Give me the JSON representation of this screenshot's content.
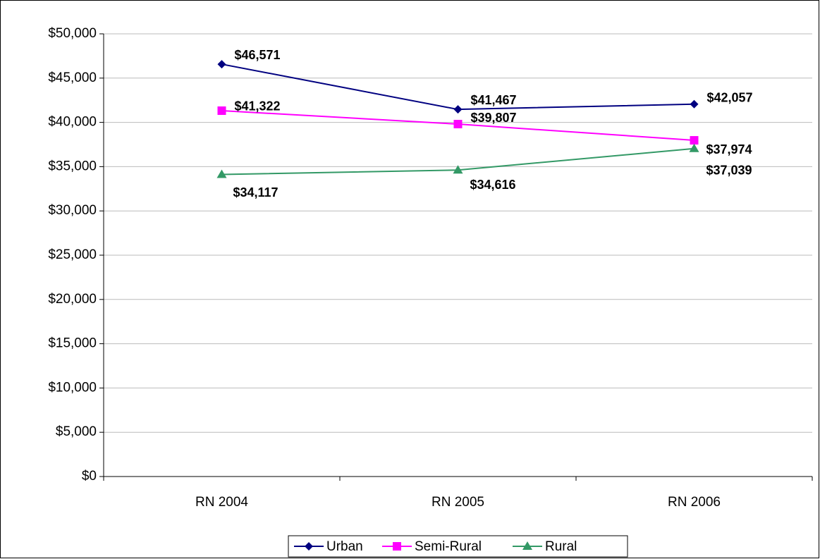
{
  "chart_data": {
    "type": "line",
    "categories": [
      "RN 2004",
      "RN 2005",
      "RN 2006"
    ],
    "series": [
      {
        "name": "Urban",
        "color": "#000080",
        "marker": "diamond",
        "values": [
          46571,
          41467,
          42057
        ],
        "value_labels": [
          "$46,571",
          "$41,467",
          "$42,057"
        ]
      },
      {
        "name": "Semi-Rural",
        "color": "#ff00ff",
        "marker": "square",
        "values": [
          41322,
          39807,
          37974
        ],
        "value_labels": [
          "$41,322",
          "$39,807",
          "$37,974"
        ]
      },
      {
        "name": "Rural",
        "color": "#339966",
        "marker": "triangle",
        "values": [
          34117,
          34616,
          37039
        ],
        "value_labels": [
          "$34,117",
          "$34,616",
          "$37,039"
        ]
      }
    ],
    "ylim": [
      0,
      50000
    ],
    "yticks": [
      {
        "value": 0,
        "label": "$0"
      },
      {
        "value": 5000,
        "label": "$5,000"
      },
      {
        "value": 10000,
        "label": "$10,000"
      },
      {
        "value": 15000,
        "label": "$15,000"
      },
      {
        "value": 20000,
        "label": "$20,000"
      },
      {
        "value": 25000,
        "label": "$25,000"
      },
      {
        "value": 30000,
        "label": "$30,000"
      },
      {
        "value": 35000,
        "label": "$35,000"
      },
      {
        "value": 40000,
        "label": "$40,000"
      },
      {
        "value": 45000,
        "label": "$45,000"
      },
      {
        "value": 50000,
        "label": "$50,000"
      }
    ],
    "grid": true,
    "legend": "bottom"
  }
}
